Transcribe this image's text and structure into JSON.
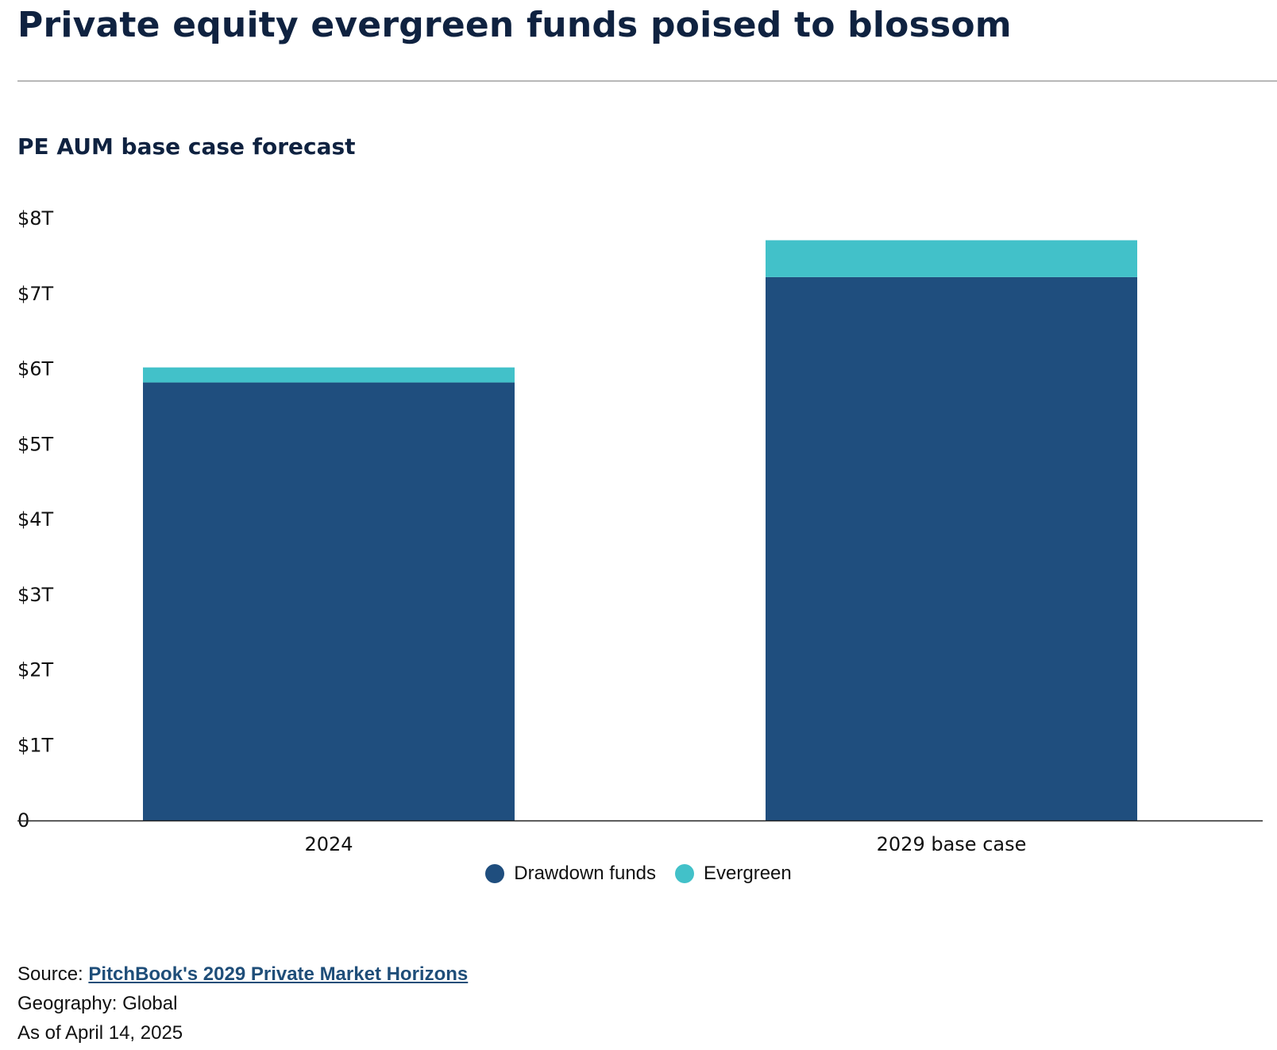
{
  "header": {
    "title": "Private equity evergreen funds poised to blossom",
    "subtitle": "PE AUM base case forecast"
  },
  "chart_data": {
    "type": "bar",
    "stacked": true,
    "categories": [
      "2024",
      "2029 base case"
    ],
    "series": [
      {
        "name": "Drawdown funds",
        "values": [
          5.82,
          7.22
        ],
        "color": "#1f4e7e"
      },
      {
        "name": "Evergreen",
        "values": [
          0.2,
          0.49
        ],
        "color": "#42c1c9"
      }
    ],
    "ylim": [
      0,
      8
    ],
    "yticks": [
      {
        "value": 0,
        "label": "0"
      },
      {
        "value": 1,
        "label": "$1T"
      },
      {
        "value": 2,
        "label": "$2T"
      },
      {
        "value": 3,
        "label": "$3T"
      },
      {
        "value": 4,
        "label": "$4T"
      },
      {
        "value": 5,
        "label": "$5T"
      },
      {
        "value": 6,
        "label": "$6T"
      },
      {
        "value": 7,
        "label": "$7T"
      },
      {
        "value": 8,
        "label": "$8T"
      }
    ],
    "xlabel": "",
    "ylabel": "",
    "grid": false,
    "legend_position": "bottom-center"
  },
  "footer": {
    "source_prefix": "Source: ",
    "source_link": "PitchBook's 2029 Private Market Horizons",
    "geography": "Geography: Global",
    "as_of": "As of April 14, 2025"
  }
}
